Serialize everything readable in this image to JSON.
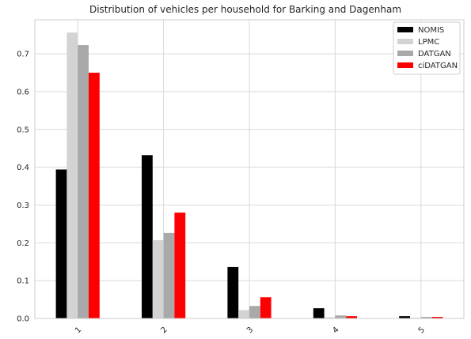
{
  "chart_data": {
    "type": "bar",
    "title": "Distribution of vehicles per household for Barking and Dagenham",
    "xlabel": "",
    "ylabel": "",
    "categories": [
      "1",
      "2",
      "3",
      "4",
      "5"
    ],
    "series": [
      {
        "name": "NOMIS",
        "color": "#000000",
        "values": [
          0.394,
          0.432,
          0.136,
          0.027,
          0.006
        ]
      },
      {
        "name": "LPMC",
        "color": "#d3d3d3",
        "values": [
          0.756,
          0.207,
          0.022,
          0.003,
          0.002
        ]
      },
      {
        "name": "DATGAN",
        "color": "#a9a9a9",
        "values": [
          0.723,
          0.226,
          0.033,
          0.008,
          0.004
        ]
      },
      {
        "name": "ciDATGAN",
        "color": "#ff0000",
        "values": [
          0.65,
          0.28,
          0.056,
          0.006,
          0.004
        ]
      }
    ],
    "ylim": [
      0,
      0.79
    ],
    "yticks": [
      "0.0",
      "0.1",
      "0.2",
      "0.3",
      "0.4",
      "0.5",
      "0.6",
      "0.7"
    ],
    "grid": true,
    "legend": "top-right"
  }
}
